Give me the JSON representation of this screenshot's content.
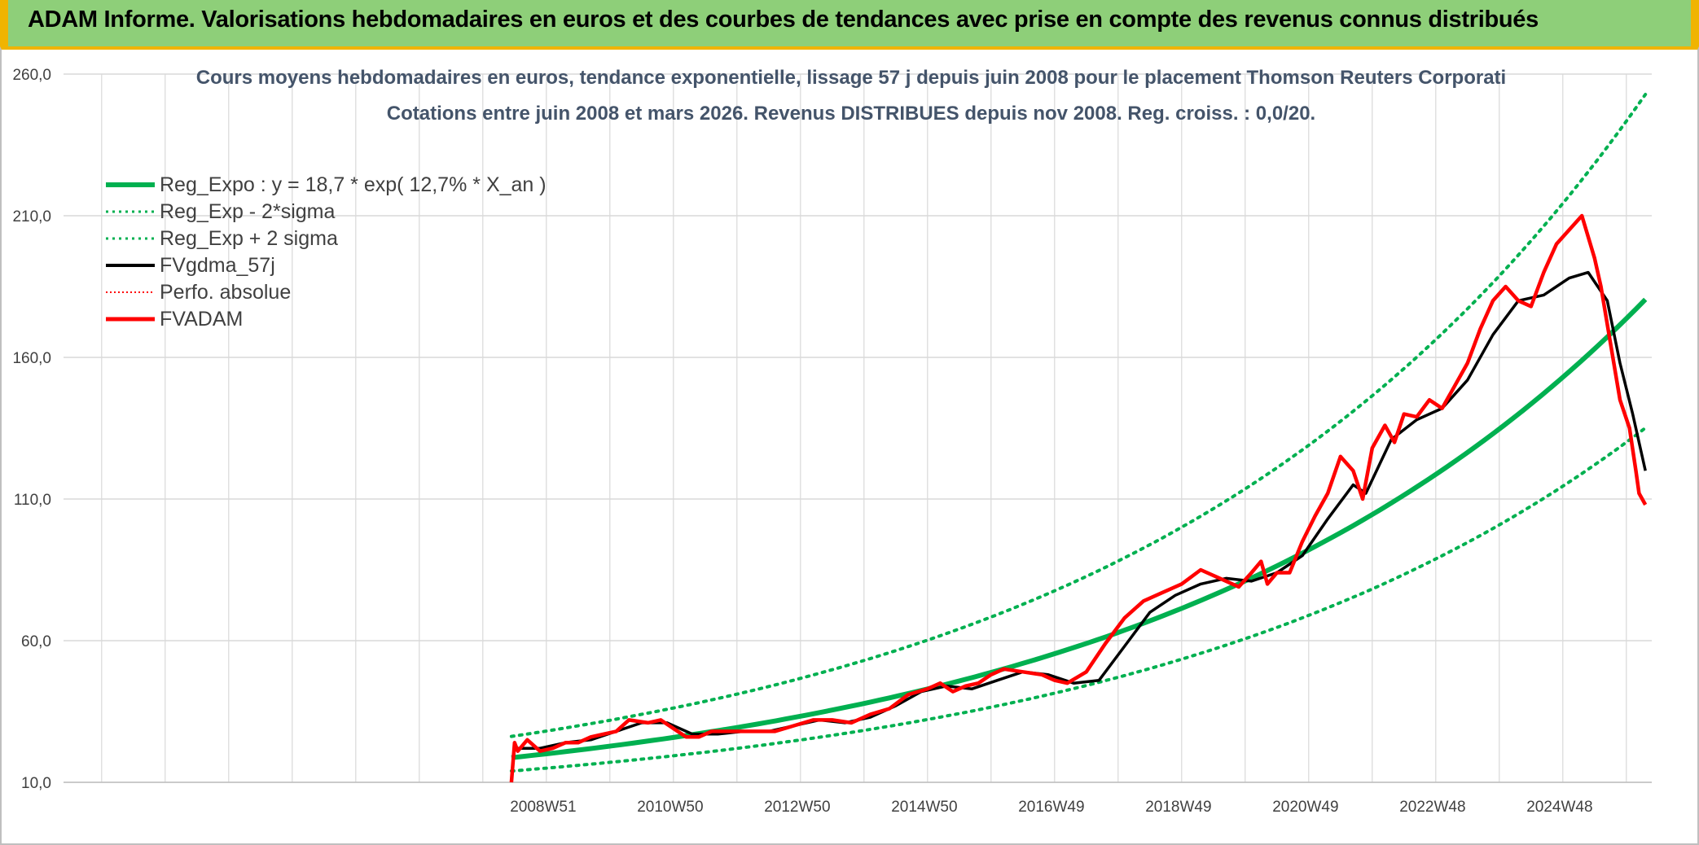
{
  "banner": {
    "title": "ADAM Informe. Valorisations hebdomadaires en euros et des courbes de tendances avec prise en compte des revenus connus distribués"
  },
  "chart_data": {
    "type": "line",
    "title_line1": "Cours moyens hebdomadaires en euros, tendance exponentielle, lissage 57 j depuis juin 2008 pour le placement Thomson Reuters Corporati",
    "title_line2": "Cotations entre juin 2008 et mars 2026. Revenus DISTRIBUES depuis nov 2008. Reg. croiss. : 0,0/20.",
    "ylim": [
      10,
      260
    ],
    "yticks": [
      "10,0",
      "60,0",
      "110,0",
      "160,0",
      "210,0",
      "260,0"
    ],
    "xticks": [
      "2008W51",
      "2010W50",
      "2012W50",
      "2014W50",
      "2016W49",
      "2018W49",
      "2020W49",
      "2022W48",
      "2024W48"
    ],
    "grid": true,
    "legend_position": "top-left",
    "legend": [
      {
        "label": "Reg_Expo : y = 18,7 * exp( 12,7% *  X_an )",
        "color": "#00b050",
        "style": "solid-thick"
      },
      {
        "label": "Reg_Exp - 2*sigma",
        "color": "#00b050",
        "style": "dotted"
      },
      {
        "label": "Reg_Exp + 2 sigma",
        "color": "#00b050",
        "style": "dotted"
      },
      {
        "label": "FVgdma_57j",
        "color": "#000000",
        "style": "solid"
      },
      {
        "label": "Perfo. absolue",
        "color": "#ff0000",
        "style": "dotted"
      },
      {
        "label": "FVADAM",
        "color": "#ff0000",
        "style": "solid-thick"
      }
    ],
    "series": [
      {
        "name": "FVADAM",
        "x": [
          2008.45,
          2008.5,
          2008.55,
          2008.7,
          2008.9,
          2009.1,
          2009.3,
          2009.5,
          2009.7,
          2009.9,
          2010.1,
          2010.3,
          2010.6,
          2010.8,
          2011.0,
          2011.2,
          2011.4,
          2011.6,
          2011.8,
          2012.0,
          2012.3,
          2012.6,
          2012.9,
          2013.2,
          2013.5,
          2013.8,
          2014.1,
          2014.4,
          2014.7,
          2015.0,
          2015.2,
          2015.4,
          2015.6,
          2015.8,
          2016.0,
          2016.2,
          2016.5,
          2016.8,
          2017.0,
          2017.2,
          2017.5,
          2017.8,
          2018.1,
          2018.4,
          2018.7,
          2019.0,
          2019.3,
          2019.6,
          2019.9,
          2020.1,
          2020.25,
          2020.35,
          2020.5,
          2020.7,
          2020.9,
          2021.1,
          2021.3,
          2021.5,
          2021.7,
          2021.85,
          2022.0,
          2022.2,
          2022.35,
          2022.5,
          2022.7,
          2022.9,
          2023.1,
          2023.3,
          2023.5,
          2023.7,
          2023.9,
          2024.1,
          2024.3,
          2024.5,
          2024.7,
          2024.9,
          2025.1,
          2025.3,
          2025.5,
          2025.6,
          2025.75,
          2025.9,
          2026.05,
          2026.15,
          2026.2,
          2026.3
        ],
        "y": [
          10,
          24,
          21,
          25,
          21,
          22,
          24,
          24,
          26,
          27,
          28,
          32,
          31,
          32,
          29,
          26,
          26,
          28,
          28,
          28,
          28,
          28,
          30,
          32,
          32,
          31,
          34,
          36,
          41,
          43,
          45,
          42,
          44,
          45,
          48,
          50,
          49,
          48,
          46,
          45,
          49,
          59,
          68,
          74,
          77,
          80,
          85,
          82,
          79,
          84,
          88,
          80,
          84,
          84,
          95,
          104,
          112,
          125,
          120,
          110,
          128,
          136,
          130,
          140,
          139,
          145,
          142,
          150,
          158,
          170,
          180,
          185,
          180,
          178,
          190,
          200,
          205,
          210,
          195,
          185,
          165,
          145,
          135,
          120,
          112,
          108
        ]
      },
      {
        "name": "FVgdma_57j",
        "x": [
          2008.5,
          2008.9,
          2009.3,
          2009.7,
          2010.1,
          2010.5,
          2010.9,
          2011.3,
          2011.7,
          2012.1,
          2012.5,
          2012.9,
          2013.3,
          2013.7,
          2014.1,
          2014.5,
          2014.9,
          2015.3,
          2015.7,
          2016.1,
          2016.5,
          2016.9,
          2017.3,
          2017.7,
          2018.1,
          2018.5,
          2018.9,
          2019.3,
          2019.7,
          2020.1,
          2020.5,
          2020.9,
          2021.3,
          2021.7,
          2021.9,
          2022.3,
          2022.7,
          2023.1,
          2023.5,
          2023.9,
          2024.3,
          2024.7,
          2025.1,
          2025.4,
          2025.7,
          2025.9,
          2026.1,
          2026.3
        ],
        "y": [
          22,
          22,
          24,
          25,
          28,
          31,
          31,
          27,
          27,
          28,
          28,
          30,
          32,
          31,
          33,
          37,
          42,
          44,
          43,
          46,
          49,
          48,
          45,
          46,
          58,
          70,
          76,
          80,
          82,
          81,
          84,
          90,
          103,
          115,
          112,
          131,
          138,
          142,
          152,
          168,
          180,
          182,
          188,
          190,
          180,
          158,
          140,
          120
        ]
      },
      {
        "name": "Reg_Expo",
        "a": 18.7,
        "rate": 0.127,
        "x0": 2008.45,
        "x_end": 2026.3
      },
      {
        "name": "Reg_Exp - 2*sigma",
        "a": 14.0,
        "rate": 0.127,
        "x0": 2008.45,
        "x_end": 2026.3
      },
      {
        "name": "Reg_Exp + 2 sigma",
        "a": 26.2,
        "rate": 0.127,
        "x0": 2008.45,
        "x_end": 2026.3
      }
    ],
    "xrange": [
      2001.4,
      2026.4
    ],
    "colors": {
      "trend": "#00b050",
      "smoothed": "#000000",
      "price": "#ff0000",
      "grid": "#d9d9d9",
      "banner": "#8ecf79",
      "accent": "#f0b400"
    }
  }
}
